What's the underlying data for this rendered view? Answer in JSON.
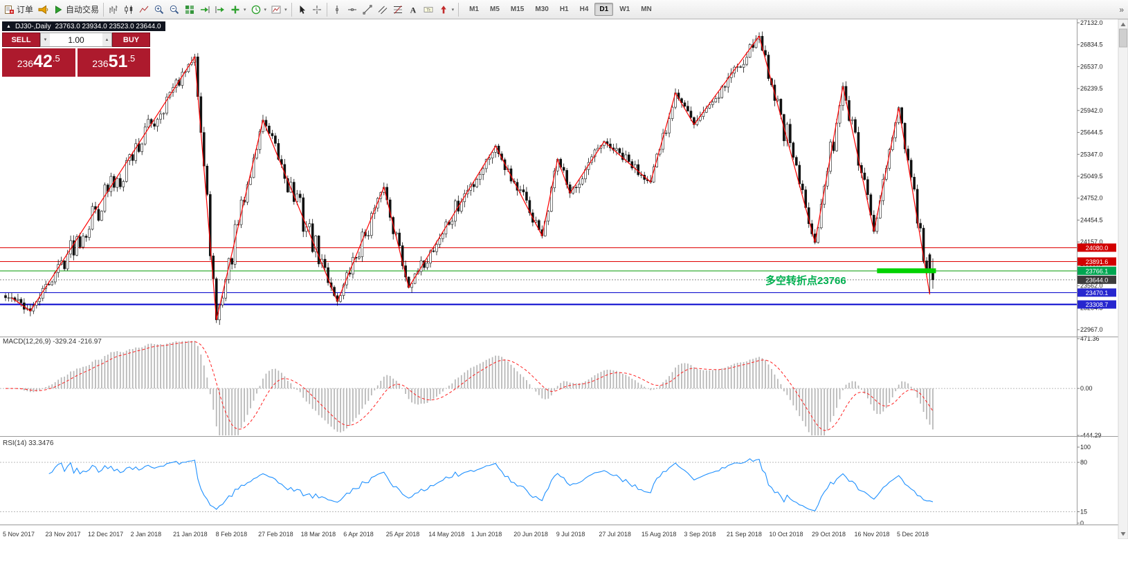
{
  "toolbar": {
    "buttons_left": [
      {
        "name": "new-order-button",
        "icon": "order",
        "label": "订单"
      },
      {
        "name": "alerts-button",
        "icon": "horn",
        "label": ""
      },
      {
        "name": "autotrading-button",
        "icon": "play",
        "label": "自动交易"
      }
    ],
    "chart_tools": [
      {
        "name": "bar-chart-button",
        "icon": "bars"
      },
      {
        "name": "candlestick-button",
        "icon": "candles"
      },
      {
        "name": "line-chart-button",
        "icon": "linechart"
      },
      {
        "name": "zoom-in-button",
        "icon": "zoomin"
      },
      {
        "name": "zoom-out-button",
        "icon": "zoomout"
      },
      {
        "name": "tile-windows-button",
        "icon": "grid"
      },
      {
        "name": "auto-scroll-button",
        "icon": "autoscroll"
      },
      {
        "name": "chart-shift-button",
        "icon": "shift"
      },
      {
        "name": "indicators-button",
        "icon": "plus",
        "dropdown": true
      },
      {
        "name": "periods-button",
        "icon": "clock",
        "dropdown": true
      },
      {
        "name": "templates-button",
        "icon": "template",
        "dropdown": true
      }
    ],
    "cursor_tools": [
      {
        "name": "cursor-button",
        "icon": "cursor"
      },
      {
        "name": "crosshair-button",
        "icon": "crosshair"
      }
    ],
    "draw_tools": [
      {
        "name": "vertical-line-button",
        "icon": "vline"
      },
      {
        "name": "horizontal-line-button",
        "icon": "hline"
      },
      {
        "name": "trendline-button",
        "icon": "trendline"
      },
      {
        "name": "channel-button",
        "icon": "channel"
      },
      {
        "name": "fibonacci-button",
        "icon": "fibo"
      },
      {
        "name": "text-button",
        "icon": "textA"
      },
      {
        "name": "label-button",
        "icon": "label"
      },
      {
        "name": "arrows-button",
        "icon": "arrows",
        "dropdown": true
      }
    ],
    "timeframes": [
      {
        "label": "M1"
      },
      {
        "label": "M5"
      },
      {
        "label": "M15"
      },
      {
        "label": "M30"
      },
      {
        "label": "H1"
      },
      {
        "label": "H4"
      },
      {
        "label": "D1",
        "active": true
      },
      {
        "label": "W1"
      },
      {
        "label": "MN"
      }
    ],
    "overflow_label": "»"
  },
  "chart": {
    "symbol_period": "DJ30-,Daily",
    "ohlc_text": "23763.0 23934.0 23523.0 23644.0",
    "collapse_glyph": "▲"
  },
  "trade_panel": {
    "sell_label": "SELL",
    "buy_label": "BUY",
    "volume": "1.00",
    "sell_price": "23642.5",
    "buy_price": "23651.5",
    "vol_up_glyph": "▲",
    "vol_down_glyph": "▼"
  },
  "annotation": {
    "text": "多空转折点23766",
    "color": "#00b050"
  },
  "price_scale": {
    "ticks": [
      {
        "label": "27132.0",
        "value": 27132.0
      },
      {
        "label": "26834.5",
        "value": 26834.5
      },
      {
        "label": "26537.0",
        "value": 26537.0
      },
      {
        "label": "26239.5",
        "value": 26239.5
      },
      {
        "label": "25942.0",
        "value": 25942.0
      },
      {
        "label": "25644.5",
        "value": 25644.5
      },
      {
        "label": "25347.0",
        "value": 25347.0
      },
      {
        "label": "25049.5",
        "value": 25049.5
      },
      {
        "label": "24752.0",
        "value": 24752.0
      },
      {
        "label": "24454.5",
        "value": 24454.5
      },
      {
        "label": "24157.0",
        "value": 24157.0
      },
      {
        "label": "23859.5",
        "value": 23859.5
      },
      {
        "label": "23562.0",
        "value": 23562.0
      },
      {
        "label": "23264.5",
        "value": 23264.5
      },
      {
        "label": "22967.0",
        "value": 22967.0
      }
    ],
    "badges": [
      {
        "label": "24080.0",
        "value": 24080.0,
        "color": "#d20000"
      },
      {
        "label": "23891.6",
        "value": 23891.6,
        "color": "#d20000"
      },
      {
        "label": "23766.1",
        "value": 23766.1,
        "color": "#00a651"
      },
      {
        "label": "23644.0",
        "value": 23644.0,
        "color": "#3c3c3c"
      },
      {
        "label": "23470.1",
        "value": 23470.1,
        "color": "#2626cf"
      },
      {
        "label": "23308.7",
        "value": 23308.7,
        "color": "#2626cf"
      }
    ]
  },
  "chart_data": {
    "type": "candlestick",
    "symbol": "DJ30-",
    "period": "Daily",
    "n_candles": 300,
    "last_candle": {
      "open": 23763.0,
      "high": 23934.0,
      "low": 23523.0,
      "close": 23644.0
    },
    "zigzag_pivots": [
      [
        2,
        23400
      ],
      [
        8,
        23220
      ],
      [
        61,
        26670
      ],
      [
        68,
        23100
      ],
      [
        83,
        25810
      ],
      [
        107,
        23350
      ],
      [
        122,
        24900
      ],
      [
        130,
        23540
      ],
      [
        158,
        25460
      ],
      [
        173,
        24240
      ],
      [
        178,
        25280
      ],
      [
        182,
        24820
      ],
      [
        193,
        25520
      ],
      [
        208,
        24970
      ],
      [
        216,
        26180
      ],
      [
        222,
        25750
      ],
      [
        243,
        26950
      ],
      [
        261,
        24150
      ],
      [
        270,
        26270
      ],
      [
        280,
        24300
      ],
      [
        288,
        25980
      ],
      [
        298,
        23445
      ]
    ],
    "hlines": [
      {
        "price": 24080.0,
        "color": "#e00000",
        "width": 1
      },
      {
        "price": 23891.6,
        "color": "#e00000",
        "width": 1
      },
      {
        "price": 23766.1,
        "color": "#009900",
        "width": 1
      },
      {
        "price": 23470.1,
        "color": "#0000cc",
        "width": 1
      },
      {
        "price": 23308.7,
        "color": "#0000cc",
        "width": 2
      }
    ],
    "current_price": 23644.0,
    "highlight_segment": {
      "price": 23766.0,
      "start_index": 281,
      "end_index": 300,
      "color": "#00d200"
    },
    "price_axis": {
      "top": 27132.0,
      "bottom": 22967.0
    }
  },
  "macd": {
    "label": "MACD(12,26,9) -329.24 -216.97",
    "fast": 12,
    "slow": 26,
    "signal": 9,
    "value_main": -329.24,
    "value_signal": -216.97,
    "max": 471.36,
    "min": -444.29,
    "scale": [
      {
        "label": "471.36",
        "value": 471.36
      },
      {
        "label": "0.00",
        "value": 0
      },
      {
        "label": "-444.29",
        "value": -444.29
      }
    ]
  },
  "rsi": {
    "label": "RSI(14) 33.3476",
    "period": 14,
    "value": 33.3476,
    "levels": [
      80,
      15
    ],
    "scale": [
      {
        "label": "100",
        "value": 100
      },
      {
        "label": "80",
        "value": 80
      },
      {
        "label": "15",
        "value": 15
      },
      {
        "label": "0",
        "value": 0
      }
    ]
  },
  "x_axis": {
    "labels": [
      "5 Nov 2017",
      "23 Nov 2017",
      "12 Dec 2017",
      "2 Jan 2018",
      "21 Jan 2018",
      "8 Feb 2018",
      "27 Feb 2018",
      "18 Mar 2018",
      "6 Apr 2018",
      "25 Apr 2018",
      "14 May 2018",
      "1 Jun 2018",
      "20 Jun 2018",
      "9 Jul 2018",
      "27 Jul 2018",
      "15 Aug 2018",
      "3 Sep 2018",
      "21 Sep 2018",
      "10 Oct 2018",
      "29 Oct 2018",
      "16 Nov 2018",
      "5 Dec 2018"
    ]
  },
  "scrollbar": {
    "up_glyph": "▲",
    "down_glyph": "▼"
  }
}
